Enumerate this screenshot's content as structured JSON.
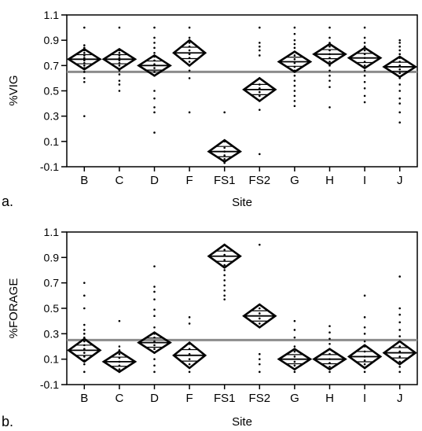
{
  "chart_data": [
    {
      "type": "scatter",
      "panel_label": "a.",
      "xlabel": "Site",
      "ylabel": "%VIG",
      "ylim": [
        -0.1,
        1.1
      ],
      "yticks": [
        -0.1,
        0.1,
        0.3,
        0.5,
        0.7,
        0.9,
        1.1
      ],
      "grand_mean": 0.65,
      "categories": [
        "B",
        "C",
        "D",
        "F",
        "FS1",
        "FS2",
        "G",
        "H",
        "I",
        "J"
      ],
      "groups": [
        {
          "site": "B",
          "mean": 0.75,
          "lower": 0.67,
          "upper": 0.83,
          "points": [
            1.0,
            0.86,
            0.84,
            0.82,
            0.8,
            0.78,
            0.76,
            0.74,
            0.72,
            0.7,
            0.68,
            0.65,
            0.6,
            0.57,
            0.3
          ]
        },
        {
          "site": "C",
          "mean": 0.75,
          "lower": 0.67,
          "upper": 0.83,
          "points": [
            1.0,
            0.82,
            0.8,
            0.78,
            0.76,
            0.74,
            0.72,
            0.7,
            0.66,
            0.63,
            0.58,
            0.55,
            0.5
          ]
        },
        {
          "site": "D",
          "mean": 0.7,
          "lower": 0.62,
          "upper": 0.78,
          "points": [
            1.0,
            0.92,
            0.88,
            0.84,
            0.8,
            0.77,
            0.74,
            0.71,
            0.68,
            0.65,
            0.62,
            0.5,
            0.44,
            0.37,
            0.33,
            0.17
          ]
        },
        {
          "site": "F",
          "mean": 0.8,
          "lower": 0.7,
          "upper": 0.9,
          "points": [
            1.0,
            0.92,
            0.88,
            0.85,
            0.82,
            0.79,
            0.76,
            0.73,
            0.7,
            0.66,
            0.6,
            0.33
          ]
        },
        {
          "site": "FS1",
          "mean": 0.02,
          "lower": -0.06,
          "upper": 0.11,
          "points": [
            0.33,
            0.1,
            0.05,
            0.02,
            -0.01,
            -0.04,
            -0.07
          ]
        },
        {
          "site": "FS2",
          "mean": 0.51,
          "lower": 0.42,
          "upper": 0.6,
          "points": [
            1.0,
            0.88,
            0.85,
            0.82,
            0.78,
            0.6,
            0.55,
            0.52,
            0.49,
            0.46,
            0.42,
            0.35,
            0.0
          ]
        },
        {
          "site": "G",
          "mean": 0.73,
          "lower": 0.65,
          "upper": 0.81,
          "points": [
            1.0,
            0.95,
            0.9,
            0.87,
            0.84,
            0.81,
            0.78,
            0.75,
            0.72,
            0.69,
            0.66,
            0.62,
            0.58,
            0.54,
            0.5,
            0.46,
            0.42,
            0.38
          ]
        },
        {
          "site": "H",
          "mean": 0.79,
          "lower": 0.71,
          "upper": 0.87,
          "points": [
            1.0,
            0.92,
            0.88,
            0.85,
            0.82,
            0.79,
            0.76,
            0.73,
            0.7,
            0.66,
            0.62,
            0.58,
            0.53,
            0.37
          ]
        },
        {
          "site": "I",
          "mean": 0.76,
          "lower": 0.68,
          "upper": 0.84,
          "points": [
            1.0,
            0.92,
            0.88,
            0.85,
            0.82,
            0.79,
            0.76,
            0.73,
            0.7,
            0.66,
            0.62,
            0.57,
            0.52,
            0.46,
            0.41
          ]
        },
        {
          "site": "J",
          "mean": 0.69,
          "lower": 0.61,
          "upper": 0.77,
          "points": [
            0.9,
            0.88,
            0.85,
            0.82,
            0.79,
            0.76,
            0.73,
            0.7,
            0.67,
            0.64,
            0.6,
            0.55,
            0.5,
            0.44,
            0.4,
            0.33,
            0.25
          ]
        }
      ]
    },
    {
      "type": "scatter",
      "panel_label": "b.",
      "xlabel": "Site",
      "ylabel": "%FORAGE",
      "ylim": [
        -0.1,
        1.1
      ],
      "yticks": [
        -0.1,
        0.1,
        0.3,
        0.5,
        0.7,
        0.9,
        1.1
      ],
      "grand_mean": 0.25,
      "categories": [
        "B",
        "C",
        "D",
        "F",
        "FS1",
        "FS2",
        "G",
        "H",
        "I",
        "J"
      ],
      "groups": [
        {
          "site": "B",
          "mean": 0.17,
          "lower": 0.08,
          "upper": 0.26,
          "points": [
            0.7,
            0.6,
            0.5,
            0.37,
            0.33,
            0.3,
            0.27,
            0.24,
            0.21,
            0.18,
            0.15,
            0.12,
            0.09,
            0.06,
            0.0
          ]
        },
        {
          "site": "C",
          "mean": 0.08,
          "lower": 0.0,
          "upper": 0.16,
          "points": [
            0.4,
            0.2,
            0.17,
            0.14,
            0.11,
            0.08,
            0.05,
            0.02,
            0.0
          ]
        },
        {
          "site": "D",
          "mean": 0.23,
          "lower": 0.15,
          "upper": 0.31,
          "points": [
            0.83,
            0.67,
            0.63,
            0.57,
            0.49,
            0.44,
            0.35,
            0.3,
            0.27,
            0.24,
            0.21,
            0.18,
            0.15,
            0.1,
            0.05,
            0.0
          ]
        },
        {
          "site": "F",
          "mean": 0.13,
          "lower": 0.03,
          "upper": 0.23,
          "points": [
            0.43,
            0.38,
            0.22,
            0.18,
            0.14,
            0.1,
            0.06,
            0.0
          ]
        },
        {
          "site": "FS1",
          "mean": 0.91,
          "lower": 0.82,
          "upper": 1.0,
          "points": [
            1.0,
            0.96,
            0.92,
            0.88,
            0.84,
            0.8,
            0.76,
            0.72,
            0.68,
            0.64,
            0.6,
            0.57
          ]
        },
        {
          "site": "FS2",
          "mean": 0.44,
          "lower": 0.35,
          "upper": 0.53,
          "points": [
            1.0,
            0.5,
            0.46,
            0.42,
            0.38,
            0.14,
            0.1,
            0.06,
            0.0
          ]
        },
        {
          "site": "G",
          "mean": 0.1,
          "lower": 0.02,
          "upper": 0.18,
          "points": [
            0.4,
            0.33,
            0.27,
            0.2,
            0.16,
            0.12,
            0.08,
            0.05,
            0.02,
            0.0
          ]
        },
        {
          "site": "H",
          "mean": 0.1,
          "lower": 0.02,
          "upper": 0.18,
          "points": [
            0.36,
            0.31,
            0.26,
            0.22,
            0.18,
            0.14,
            0.1,
            0.07,
            0.04,
            0.0
          ]
        },
        {
          "site": "I",
          "mean": 0.12,
          "lower": 0.03,
          "upper": 0.21,
          "points": [
            0.6,
            0.43,
            0.35,
            0.3,
            0.24,
            0.2,
            0.16,
            0.12,
            0.09,
            0.06,
            0.03,
            0.0
          ]
        },
        {
          "site": "J",
          "mean": 0.15,
          "lower": 0.06,
          "upper": 0.24,
          "points": [
            0.75,
            0.5,
            0.45,
            0.39,
            0.33,
            0.28,
            0.24,
            0.2,
            0.16,
            0.12,
            0.08,
            0.04,
            0.0
          ]
        }
      ]
    }
  ]
}
